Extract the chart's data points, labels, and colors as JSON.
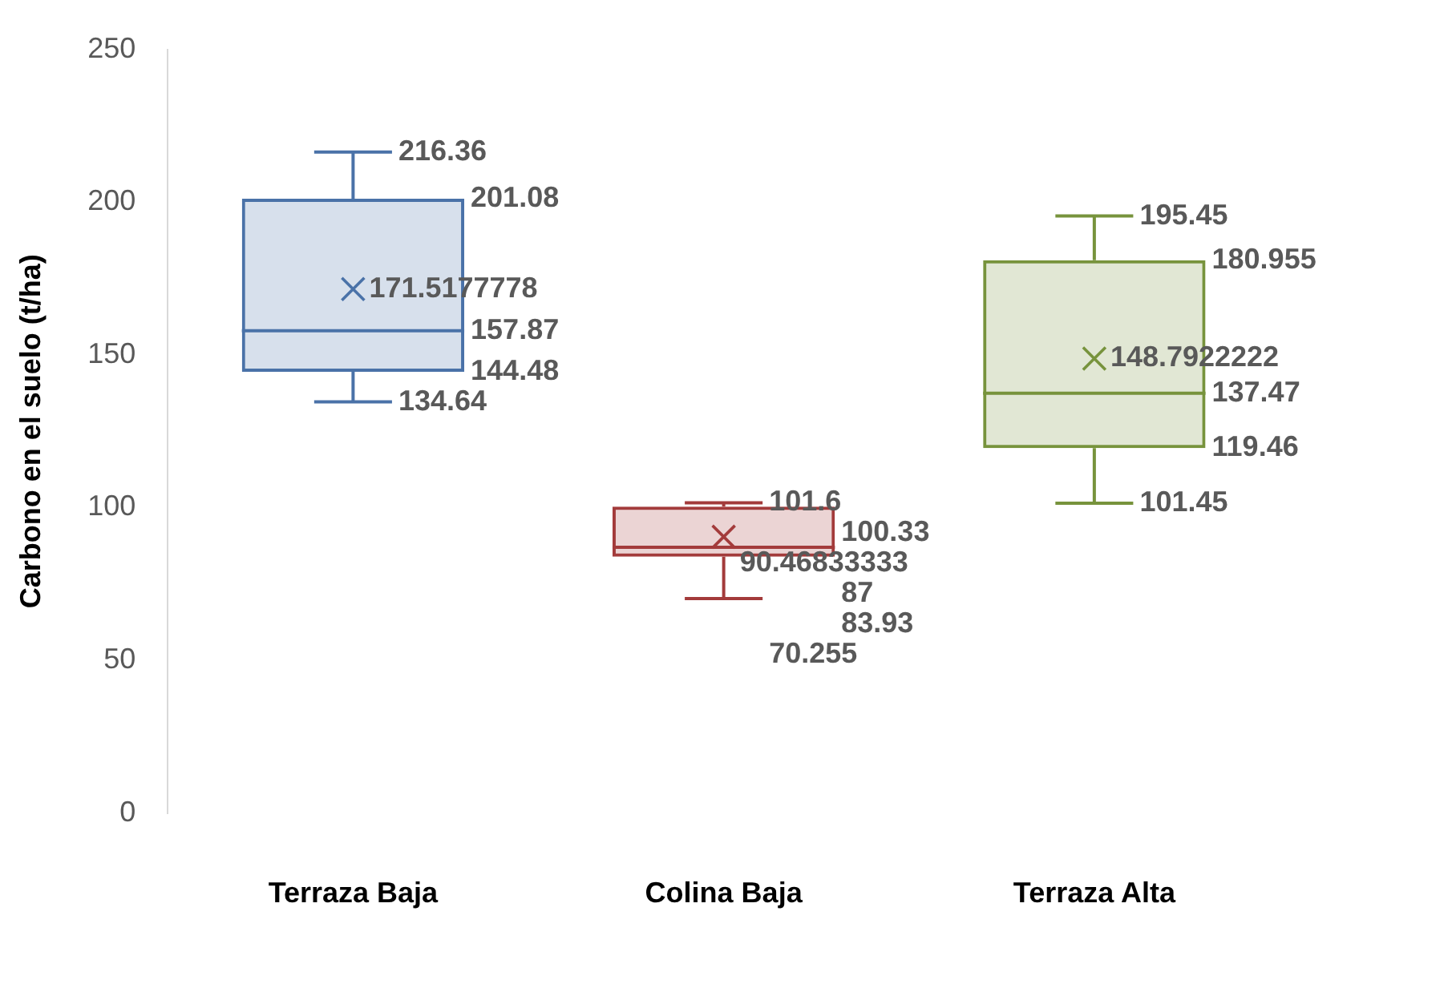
{
  "chart_data": {
    "type": "box",
    "ylabel": "Carbono en el suelo (t/ha)",
    "categories": [
      "Terraza Baja",
      "Colina Baja",
      "Terraza Alta"
    ],
    "boxes": [
      {
        "low": 134.64,
        "q1": 144.48,
        "median": 157.87,
        "q3": 201.08,
        "high": 216.36,
        "mean": 171.5177778
      },
      {
        "low": 70.255,
        "q1": 83.93,
        "median": 87,
        "q3": 100.33,
        "high": 101.6,
        "mean": 90.46833333
      },
      {
        "low": 101.45,
        "q1": 119.46,
        "median": 137.47,
        "q3": 180.955,
        "high": 195.45,
        "mean": 148.7922222
      }
    ],
    "colors": [
      "#4a72a8",
      "#a33b3b",
      "#77933c"
    ],
    "annotations": [
      {
        "text": "216.36",
        "x": "Terraza Baja",
        "y": 216.36
      },
      "201.08",
      "171.5177778",
      "157.87",
      "144.48",
      {
        "text": "134.64",
        "x": "Terraza Baja",
        "y": 134.64
      },
      {
        "text": "101.6",
        "x": "Colina Baja",
        "y": 101.6
      },
      "100.33",
      "90.46833333",
      "87",
      "83.93",
      {
        "text": "70.255",
        "x": "Colina Baja",
        "y": 70.255
      },
      {
        "text": "195.45",
        "x": "Terraza Alta",
        "y": 195.45
      },
      "180.955",
      "148.7922222",
      "137.47",
      "119.46",
      {
        "text": "101.45",
        "x": "Terraza Alta",
        "y": 101.45
      }
    ],
    "ylim": [
      0,
      250
    ],
    "yticks": [
      0,
      50,
      100,
      150,
      200,
      250
    ],
    "grid": false,
    "legend": false,
    "marker": "cross"
  }
}
